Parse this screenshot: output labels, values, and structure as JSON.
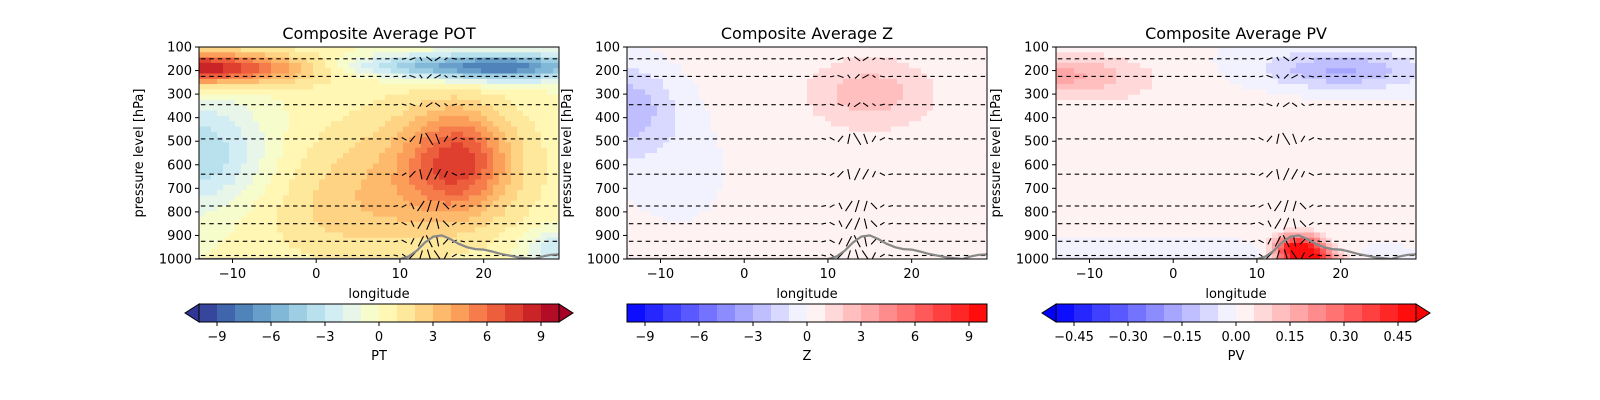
{
  "chart_data": [
    {
      "type": "heatmap",
      "title": "Composite Average POT",
      "xlabel": "longitude",
      "ylabel": "pressure level [hPa]",
      "xlim": [
        -14,
        29
      ],
      "ylim": [
        1000,
        100
      ],
      "xticks": [
        -10,
        0,
        10,
        20
      ],
      "xtick_labels": [
        "−10",
        "0",
        "10",
        "20"
      ],
      "yticks": [
        100,
        200,
        300,
        400,
        500,
        600,
        700,
        800,
        900,
        1000
      ],
      "ytick_labels": [
        "100",
        "200",
        "300",
        "400",
        "500",
        "600",
        "700",
        "800",
        "900",
        "1000"
      ],
      "colorbar": {
        "label": "PT",
        "ticks": [
          -9,
          -6,
          -3,
          0,
          3,
          6,
          9
        ],
        "tick_labels": [
          "−9",
          "−6",
          "−3",
          "0",
          "3",
          "6",
          "9"
        ],
        "range": [
          -10,
          10
        ],
        "extend": "both",
        "cmap": "RdYlBu_r",
        "levels": 20
      },
      "field": "pot"
    },
    {
      "type": "heatmap",
      "title": "Composite Average Z",
      "xlabel": "longitude",
      "ylabel": "pressure level [hPa]",
      "xlim": [
        -14,
        29
      ],
      "ylim": [
        1000,
        100
      ],
      "xticks": [
        -10,
        0,
        10,
        20
      ],
      "xtick_labels": [
        "−10",
        "0",
        "10",
        "20"
      ],
      "yticks": [
        100,
        200,
        300,
        400,
        500,
        600,
        700,
        800,
        900,
        1000
      ],
      "ytick_labels": [
        "100",
        "200",
        "300",
        "400",
        "500",
        "600",
        "700",
        "800",
        "900",
        "1000"
      ],
      "colorbar": {
        "label": "Z",
        "ticks": [
          -9,
          -6,
          -3,
          0,
          3,
          6,
          9
        ],
        "tick_labels": [
          "−9",
          "−6",
          "−3",
          "0",
          "3",
          "6",
          "9"
        ],
        "range": [
          -10,
          10
        ],
        "extend": "neither",
        "cmap": "bwr",
        "levels": 20
      },
      "field": "z"
    },
    {
      "type": "heatmap",
      "title": "Composite Average PV",
      "xlabel": "longitude",
      "ylabel": "pressure level [hPa]",
      "xlim": [
        -14,
        29
      ],
      "ylim": [
        1000,
        100
      ],
      "xticks": [
        -10,
        0,
        10,
        20
      ],
      "xtick_labels": [
        "−10",
        "0",
        "10",
        "20"
      ],
      "yticks": [
        100,
        200,
        300,
        400,
        500,
        600,
        700,
        800,
        900,
        1000
      ],
      "ytick_labels": [
        "100",
        "200",
        "300",
        "400",
        "500",
        "600",
        "700",
        "800",
        "900",
        "1000"
      ],
      "colorbar": {
        "label": "PV",
        "ticks": [
          -0.45,
          -0.3,
          -0.15,
          0,
          0.15,
          0.3,
          0.45
        ],
        "tick_labels": [
          "−0.45",
          "−0.30",
          "−0.15",
          "0.00",
          "0.15",
          "0.30",
          "0.45"
        ],
        "range": [
          -0.5,
          0.5
        ],
        "extend": "both",
        "cmap": "bwr",
        "levels": 20
      },
      "field": "pv"
    }
  ],
  "wind_vector_levels_hPa": [
    150,
    225,
    345,
    490,
    640,
    775,
    850,
    925,
    985
  ],
  "terrain_profile": {
    "longitude": [
      -14,
      10,
      11,
      12,
      13,
      14,
      15,
      16,
      17,
      18,
      19,
      20,
      21,
      22,
      24,
      26,
      27,
      28,
      29
    ],
    "pressure_hPa": [
      1000,
      1000,
      990,
      965,
      930,
      905,
      900,
      915,
      935,
      950,
      958,
      960,
      968,
      978,
      992,
      1000,
      990,
      982,
      980
    ]
  },
  "colors": {
    "terrain_line": "#888888",
    "arrow": "#000000"
  }
}
